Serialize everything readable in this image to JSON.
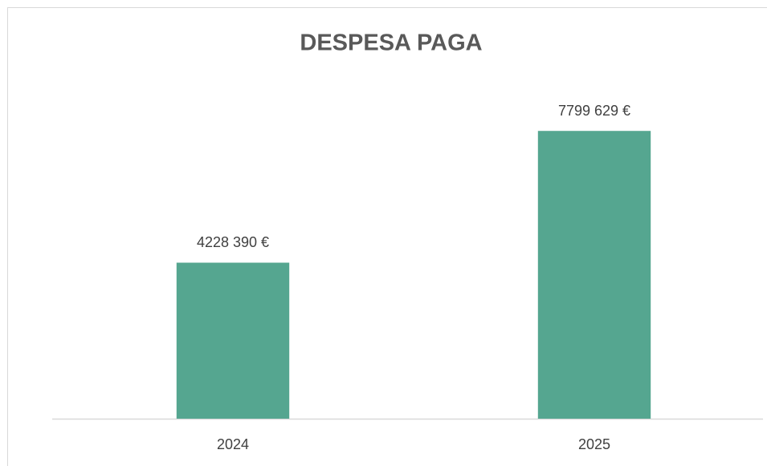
{
  "chart_data": {
    "type": "bar",
    "title": "DESPESA PAGA",
    "categories": [
      "2024",
      "2025"
    ],
    "values": [
      4228390,
      7799629
    ],
    "value_labels": [
      "4228 390 €",
      "7799 629 €"
    ],
    "color": "#55a690",
    "ylim": [
      0,
      9000000
    ]
  }
}
